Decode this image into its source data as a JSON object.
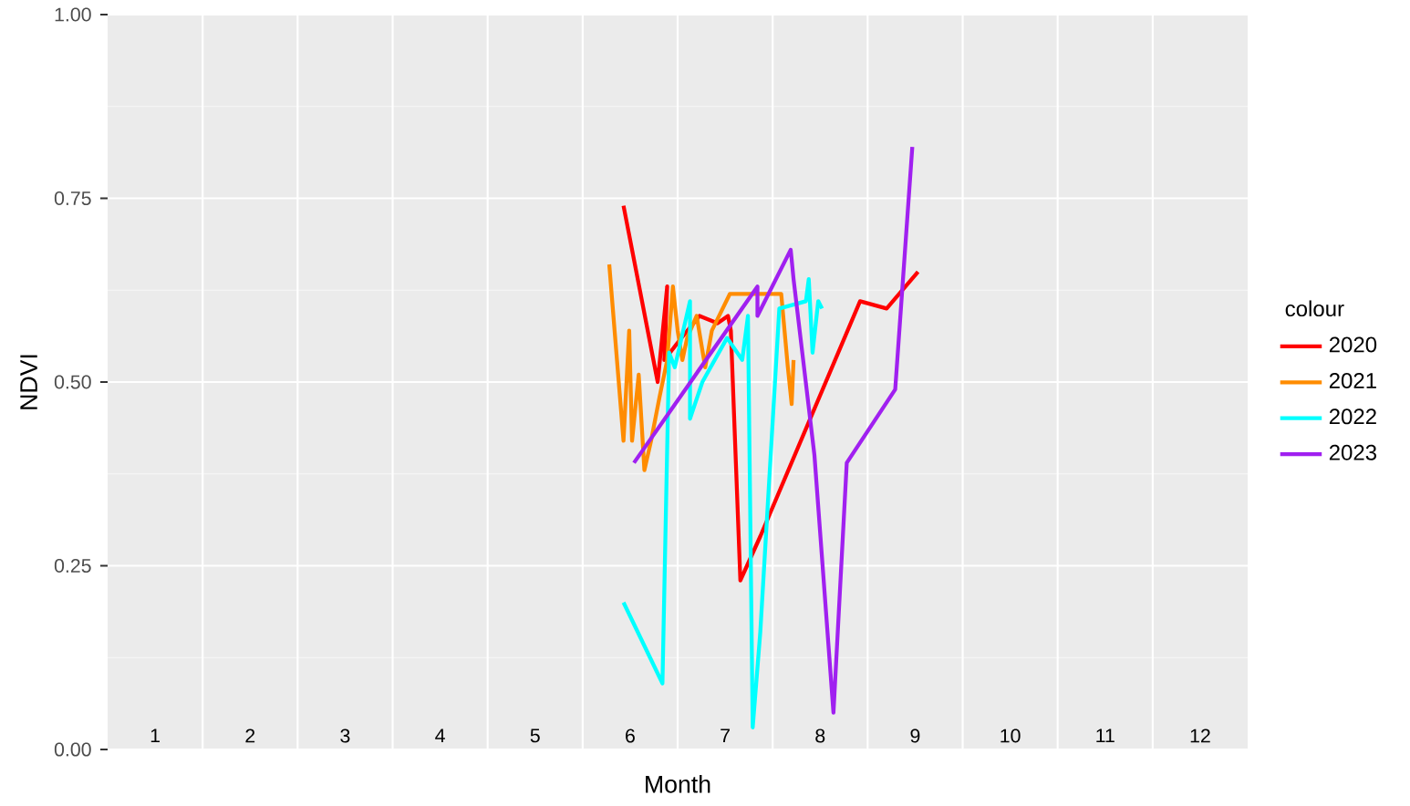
{
  "chart_data": {
    "type": "line",
    "xlabel": "Month",
    "ylabel": "NDVI",
    "legend_title": "colour",
    "legend": "right",
    "grid": true,
    "line_style": "solid",
    "xlim": [
      0,
      12
    ],
    "xticks": [
      {
        "value": 0.5,
        "label": "1"
      },
      {
        "value": 1.5,
        "label": "2"
      },
      {
        "value": 2.5,
        "label": "3"
      },
      {
        "value": 3.5,
        "label": "4"
      },
      {
        "value": 4.5,
        "label": "5"
      },
      {
        "value": 5.5,
        "label": "6"
      },
      {
        "value": 6.5,
        "label": "7"
      },
      {
        "value": 7.5,
        "label": "8"
      },
      {
        "value": 8.5,
        "label": "9"
      },
      {
        "value": 9.5,
        "label": "10"
      },
      {
        "value": 10.5,
        "label": "11"
      },
      {
        "value": 11.5,
        "label": "12"
      },
      {
        "value": 1,
        "label": null
      },
      {
        "value": 2,
        "label": null
      },
      {
        "value": 3,
        "label": null
      },
      {
        "value": 4,
        "label": null
      },
      {
        "value": 5,
        "label": null
      },
      {
        "value": 6,
        "label": null
      },
      {
        "value": 7,
        "label": null
      },
      {
        "value": 8,
        "label": null
      },
      {
        "value": 9,
        "label": null
      },
      {
        "value": 10,
        "label": null
      },
      {
        "value": 11,
        "label": null
      }
    ],
    "ylim": [
      0,
      1
    ],
    "yticks": [
      {
        "value": 0,
        "label": "0.00"
      },
      {
        "value": 0.25,
        "label": "0.25"
      },
      {
        "value": 0.5,
        "label": "0.50"
      },
      {
        "value": 0.75,
        "label": "0.75"
      },
      {
        "value": 1,
        "label": "1.00"
      }
    ],
    "series": [
      {
        "name": "2020",
        "color": "#ff0000",
        "x": [
          5.43,
          5.79,
          5.89,
          5.86,
          6.04,
          6.23,
          6.42,
          6.53,
          6.56,
          6.66,
          6.73,
          6.87,
          7.92,
          8.2,
          8.53
        ],
        "values": [
          0.74,
          0.5,
          0.63,
          0.53,
          0.56,
          0.59,
          0.58,
          0.59,
          0.57,
          0.23,
          0.25,
          0.29,
          0.61,
          0.6,
          0.65
        ]
      },
      {
        "name": "2021",
        "color": "#ff8c00",
        "x": [
          5.28,
          5.43,
          5.49,
          5.52,
          5.59,
          5.65,
          5.72,
          5.81,
          5.89,
          5.95,
          6.0,
          6.05,
          6.1,
          6.2,
          6.29,
          6.36,
          6.55,
          6.84,
          7.09,
          7.16,
          7.2,
          7.22
        ],
        "values": [
          0.66,
          0.42,
          0.57,
          0.42,
          0.51,
          0.38,
          0.42,
          0.48,
          0.53,
          0.63,
          0.57,
          0.53,
          0.56,
          0.59,
          0.52,
          0.57,
          0.62,
          0.62,
          0.62,
          0.52,
          0.47,
          0.53
        ]
      },
      {
        "name": "2022",
        "color": "#00ffff",
        "x": [
          5.43,
          5.84,
          5.91,
          5.97,
          6.13,
          6.13,
          6.26,
          6.52,
          6.68,
          6.74,
          6.79,
          6.87,
          7.07,
          7.35,
          7.38,
          7.42,
          7.48,
          7.52
        ],
        "values": [
          0.2,
          0.09,
          0.54,
          0.52,
          0.61,
          0.45,
          0.5,
          0.56,
          0.53,
          0.59,
          0.03,
          0.16,
          0.6,
          0.61,
          0.64,
          0.54,
          0.61,
          0.6
        ]
      },
      {
        "name": "2023",
        "color": "#a020f0",
        "x": [
          5.54,
          6.84,
          6.84,
          7.19,
          7.22,
          7.44,
          7.64,
          7.78,
          8.29,
          8.47
        ],
        "values": [
          0.39,
          0.63,
          0.59,
          0.68,
          0.64,
          0.4,
          0.05,
          0.39,
          0.49,
          0.82
        ]
      }
    ]
  }
}
